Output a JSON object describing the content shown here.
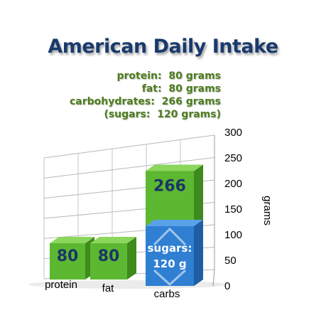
{
  "title": "American Daily Intake",
  "summary": [
    "protein:  80 grams",
    "fat:  80 grams",
    "carbohydrates:  266 grams",
    "(sugars:  120 grams)"
  ],
  "chart_data": {
    "type": "bar",
    "categories": [
      "protein",
      "fat",
      "carbs"
    ],
    "series": [
      {
        "values": [
          80,
          80,
          266
        ]
      }
    ],
    "sub_segment": {
      "category": "carbs",
      "value": 120,
      "label": [
        "sugars:",
        "120 g"
      ]
    },
    "value_labels": [
      "80",
      "80",
      "266"
    ],
    "ylabel": "grams",
    "ylim": [
      0,
      300
    ],
    "yticks": [
      0,
      50,
      100,
      150,
      200,
      250,
      300
    ],
    "grid": true,
    "colors": {
      "bar": "#5cb831",
      "sugars": "#2f7fd3",
      "value_text": "#1b3565"
    }
  }
}
